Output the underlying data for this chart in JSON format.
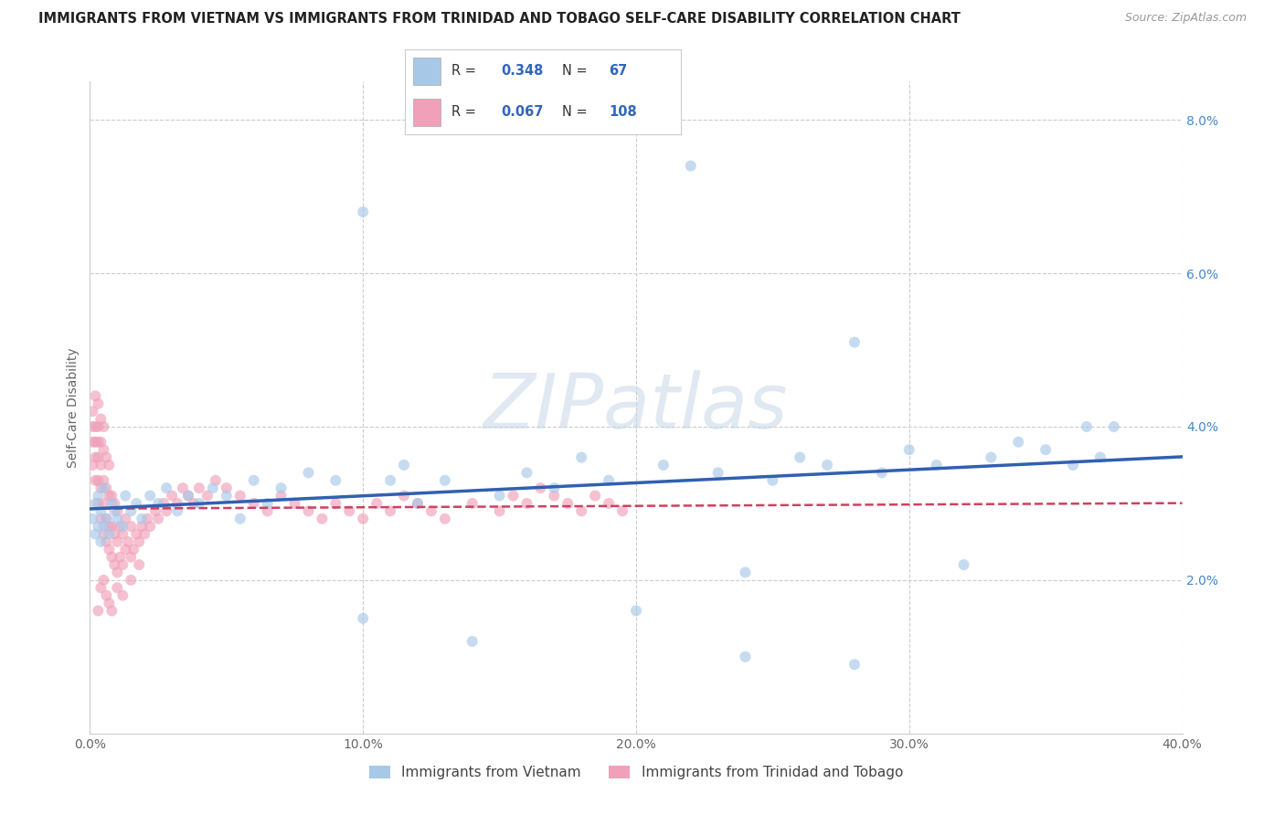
{
  "title": "IMMIGRANTS FROM VIETNAM VS IMMIGRANTS FROM TRINIDAD AND TOBAGO SELF-CARE DISABILITY CORRELATION CHART",
  "source": "Source: ZipAtlas.com",
  "ylabel": "Self-Care Disability",
  "legend_label1": "Immigrants from Vietnam",
  "legend_label2": "Immigrants from Trinidad and Tobago",
  "R1": 0.348,
  "N1": 67,
  "R2": 0.067,
  "N2": 108,
  "color1": "#a8c8e8",
  "color2": "#f0a0b8",
  "trendline1_color": "#3060b0",
  "trendline2_color": "#d04060",
  "background_color": "#ffffff",
  "grid_color": "#cccccc",
  "watermark": "ZIPatlas",
  "xlim": [
    0.0,
    0.4
  ],
  "ylim": [
    0.0,
    0.085
  ],
  "xtick_labels": [
    "0.0%",
    "10.0%",
    "20.0%",
    "30.0%",
    "40.0%"
  ],
  "ytick_labels": [
    "",
    "2.0%",
    "4.0%",
    "6.0%",
    "8.0%"
  ],
  "viet_x": [
    0.001,
    0.002,
    0.002,
    0.003,
    0.003,
    0.004,
    0.004,
    0.005,
    0.005,
    0.006,
    0.007,
    0.008,
    0.009,
    0.01,
    0.012,
    0.013,
    0.015,
    0.017,
    0.019,
    0.022,
    0.025,
    0.028,
    0.032,
    0.036,
    0.04,
    0.045,
    0.05,
    0.055,
    0.06,
    0.065,
    0.07,
    0.08,
    0.09,
    0.1,
    0.11,
    0.115,
    0.12,
    0.13,
    0.14,
    0.15,
    0.16,
    0.17,
    0.18,
    0.19,
    0.2,
    0.21,
    0.22,
    0.23,
    0.24,
    0.25,
    0.26,
    0.27,
    0.28,
    0.29,
    0.3,
    0.31,
    0.32,
    0.33,
    0.34,
    0.35,
    0.36,
    0.365,
    0.37,
    0.375,
    0.28,
    0.24,
    0.1
  ],
  "viet_y": [
    0.028,
    0.026,
    0.03,
    0.027,
    0.031,
    0.025,
    0.029,
    0.032,
    0.027,
    0.028,
    0.026,
    0.03,
    0.029,
    0.028,
    0.027,
    0.031,
    0.029,
    0.03,
    0.028,
    0.031,
    0.03,
    0.032,
    0.029,
    0.031,
    0.03,
    0.032,
    0.031,
    0.028,
    0.033,
    0.03,
    0.032,
    0.034,
    0.033,
    0.068,
    0.033,
    0.035,
    0.03,
    0.033,
    0.012,
    0.031,
    0.034,
    0.032,
    0.036,
    0.033,
    0.016,
    0.035,
    0.074,
    0.034,
    0.01,
    0.033,
    0.036,
    0.035,
    0.051,
    0.034,
    0.037,
    0.035,
    0.022,
    0.036,
    0.038,
    0.037,
    0.035,
    0.04,
    0.036,
    0.04,
    0.009,
    0.021,
    0.015
  ],
  "tt_x": [
    0.001,
    0.001,
    0.001,
    0.001,
    0.002,
    0.002,
    0.002,
    0.002,
    0.002,
    0.003,
    0.003,
    0.003,
    0.003,
    0.003,
    0.003,
    0.004,
    0.004,
    0.004,
    0.004,
    0.004,
    0.005,
    0.005,
    0.005,
    0.005,
    0.005,
    0.006,
    0.006,
    0.006,
    0.006,
    0.007,
    0.007,
    0.007,
    0.007,
    0.008,
    0.008,
    0.008,
    0.009,
    0.009,
    0.009,
    0.01,
    0.01,
    0.01,
    0.011,
    0.011,
    0.012,
    0.012,
    0.013,
    0.013,
    0.014,
    0.015,
    0.015,
    0.016,
    0.017,
    0.018,
    0.019,
    0.02,
    0.021,
    0.022,
    0.024,
    0.025,
    0.027,
    0.028,
    0.03,
    0.032,
    0.034,
    0.036,
    0.038,
    0.04,
    0.043,
    0.046,
    0.05,
    0.055,
    0.06,
    0.065,
    0.07,
    0.075,
    0.08,
    0.085,
    0.09,
    0.095,
    0.1,
    0.105,
    0.11,
    0.115,
    0.12,
    0.125,
    0.13,
    0.14,
    0.15,
    0.155,
    0.16,
    0.165,
    0.17,
    0.175,
    0.18,
    0.185,
    0.19,
    0.195,
    0.005,
    0.003,
    0.004,
    0.006,
    0.007,
    0.008,
    0.01,
    0.012,
    0.015,
    0.018
  ],
  "tt_y": [
    0.035,
    0.038,
    0.04,
    0.042,
    0.033,
    0.036,
    0.038,
    0.04,
    0.044,
    0.03,
    0.033,
    0.036,
    0.038,
    0.04,
    0.043,
    0.028,
    0.032,
    0.035,
    0.038,
    0.041,
    0.026,
    0.03,
    0.033,
    0.037,
    0.04,
    0.025,
    0.028,
    0.032,
    0.036,
    0.024,
    0.027,
    0.031,
    0.035,
    0.023,
    0.027,
    0.031,
    0.022,
    0.026,
    0.03,
    0.021,
    0.025,
    0.029,
    0.023,
    0.027,
    0.022,
    0.026,
    0.024,
    0.028,
    0.025,
    0.023,
    0.027,
    0.024,
    0.026,
    0.025,
    0.027,
    0.026,
    0.028,
    0.027,
    0.029,
    0.028,
    0.03,
    0.029,
    0.031,
    0.03,
    0.032,
    0.031,
    0.03,
    0.032,
    0.031,
    0.033,
    0.032,
    0.031,
    0.03,
    0.029,
    0.031,
    0.03,
    0.029,
    0.028,
    0.03,
    0.029,
    0.028,
    0.03,
    0.029,
    0.031,
    0.03,
    0.029,
    0.028,
    0.03,
    0.029,
    0.031,
    0.03,
    0.032,
    0.031,
    0.03,
    0.029,
    0.031,
    0.03,
    0.029,
    0.02,
    0.016,
    0.019,
    0.018,
    0.017,
    0.016,
    0.019,
    0.018,
    0.02,
    0.022
  ]
}
